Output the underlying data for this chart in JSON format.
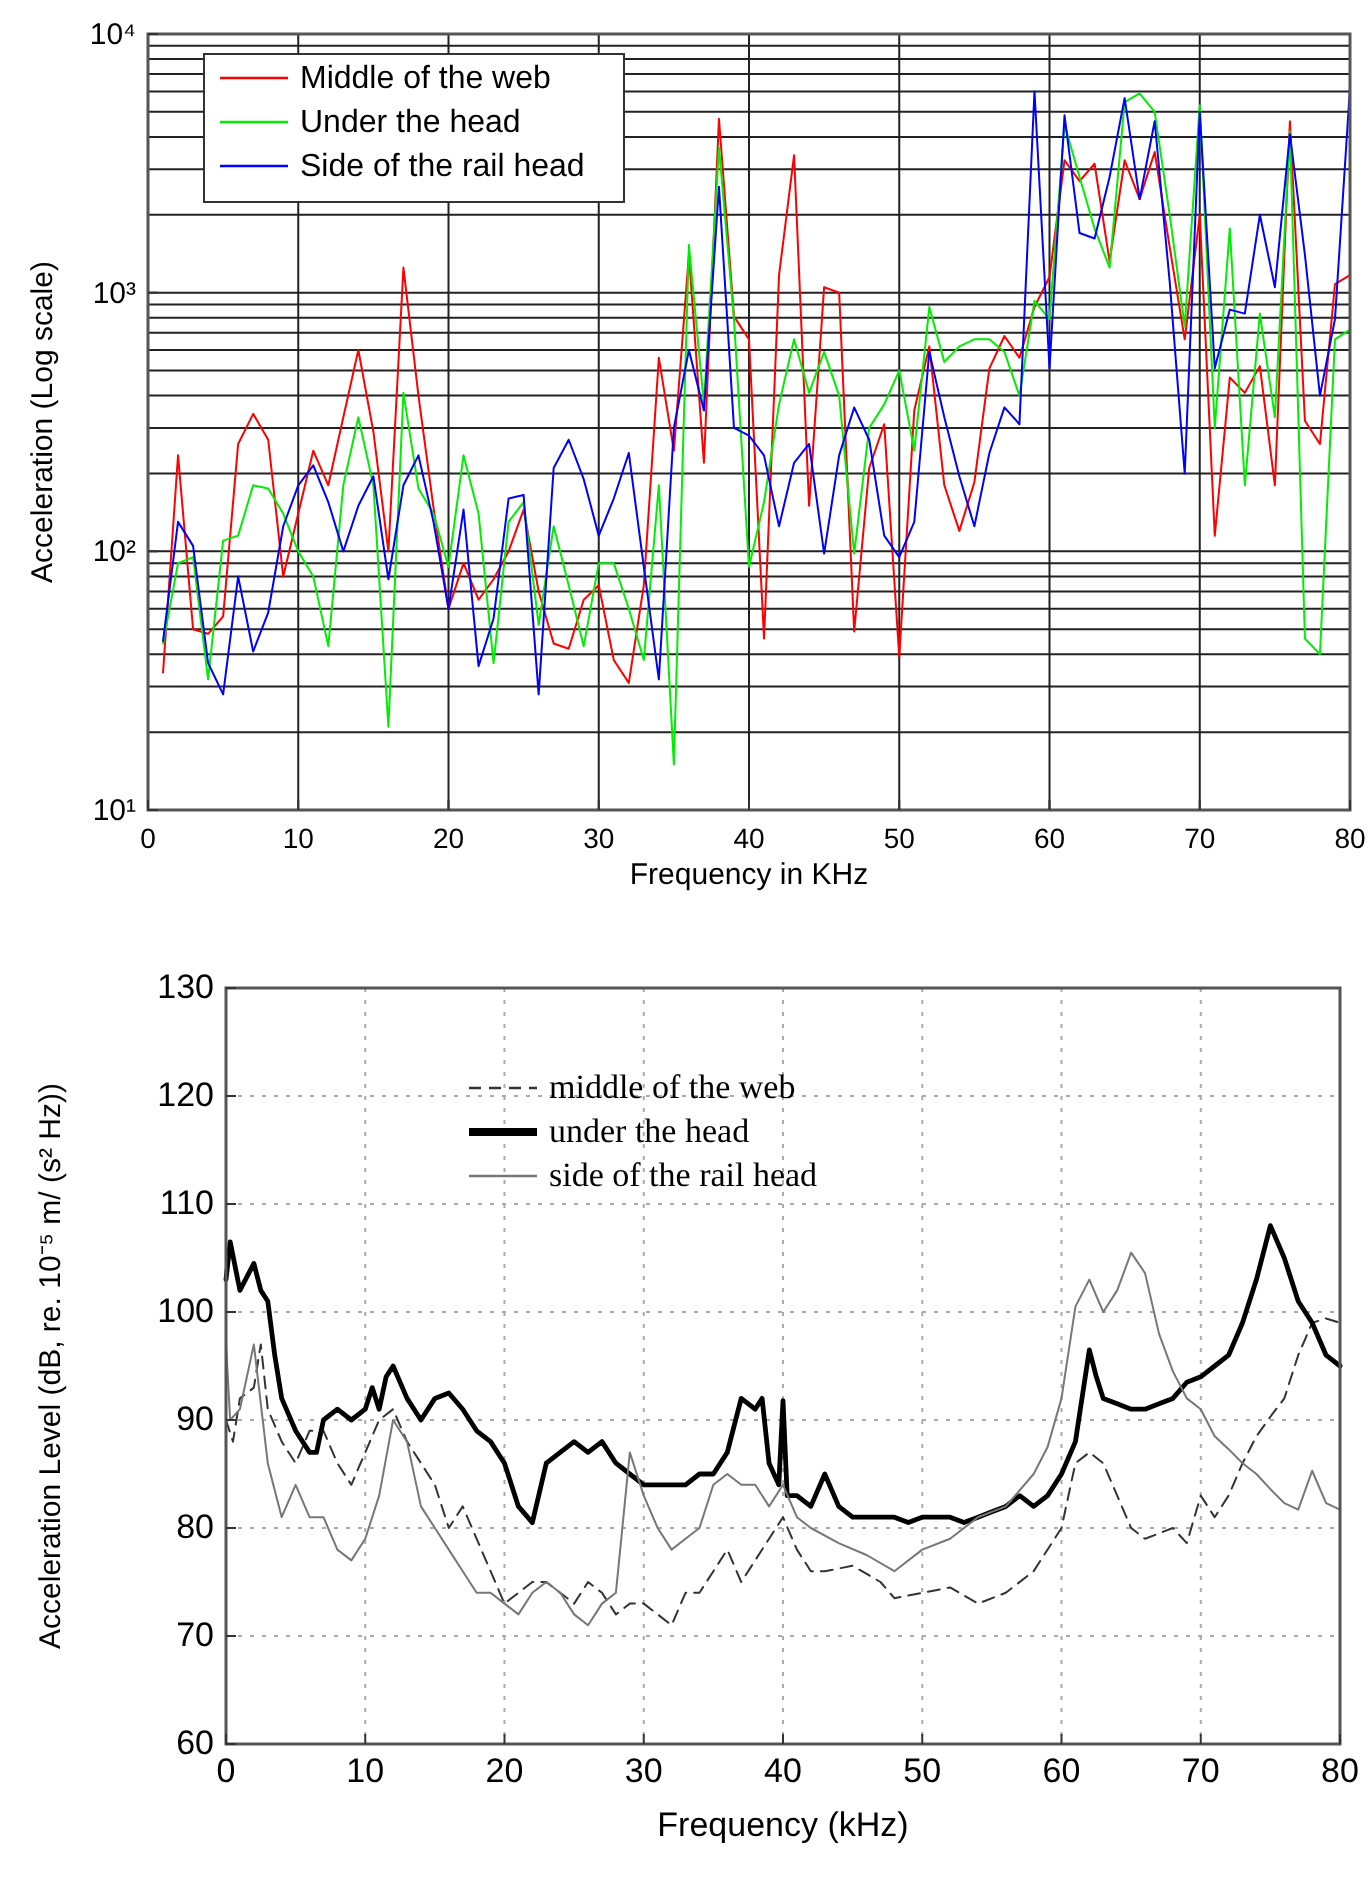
{
  "chart_data": [
    {
      "type": "line",
      "xlabel": "Frequency in KHz",
      "ylabel": "Acceleration (Log scale)",
      "log": "y",
      "grid": true,
      "legend": "top left",
      "marker": "none",
      "xlim": [
        0,
        80
      ],
      "xticks": [
        0,
        10,
        20,
        30,
        40,
        50,
        60,
        70,
        80
      ],
      "ylim": [
        10,
        10000
      ],
      "yticks": [
        {
          "value": 10,
          "label": "10¹"
        },
        {
          "value": 100,
          "label": "10²"
        },
        {
          "value": 1000,
          "label": "10³"
        },
        {
          "value": 10000,
          "label": "10⁴"
        }
      ],
      "x": [
        1,
        2,
        3,
        4,
        5,
        6,
        7,
        8,
        9,
        10,
        11,
        12,
        13,
        14,
        15,
        16,
        17,
        18,
        19,
        20,
        21,
        22,
        23,
        24,
        25,
        26,
        27,
        28,
        29,
        30,
        31,
        32,
        33,
        34,
        35,
        36,
        37,
        38,
        39,
        40,
        41,
        42,
        43,
        44,
        45,
        46,
        47,
        48,
        49,
        50,
        51,
        52,
        53,
        54,
        55,
        56,
        57,
        58,
        59,
        60,
        61,
        62,
        63,
        64,
        65,
        66,
        67,
        68,
        69,
        70,
        71,
        72,
        73,
        74,
        75,
        76,
        77,
        78,
        79,
        80
      ],
      "series": [
        {
          "name": "Middle of the web",
          "color": "#ff0000",
          "values": [
            34,
            235,
            50,
            48,
            56,
            260,
            340,
            270,
            80,
            140,
            245,
            180,
            330,
            600,
            290,
            100,
            1250,
            400,
            148,
            60,
            90,
            65,
            78,
            100,
            145,
            70,
            44,
            42,
            65,
            74,
            38,
            31,
            74,
            560,
            245,
            1400,
            220,
            4700,
            810,
            660,
            46,
            1170,
            3400,
            150,
            1050,
            1000,
            49,
            210,
            310,
            39,
            350,
            620,
            180,
            120,
            185,
            510,
            680,
            560,
            880,
            1150,
            3250,
            2700,
            3150,
            1320,
            3250,
            2300,
            3500,
            1500,
            660,
            2000,
            115,
            470,
            410,
            520,
            180,
            4600,
            320,
            260,
            1080,
            1170
          ]
        },
        {
          "name": "Under the head",
          "color": "#00ee00",
          "values": [
            44,
            90,
            95,
            32,
            110,
            115,
            180,
            175,
            140,
            100,
            80,
            43,
            180,
            330,
            180,
            21,
            410,
            175,
            140,
            87,
            235,
            140,
            37,
            130,
            155,
            52,
            125,
            74,
            43,
            90,
            90,
            60,
            38,
            180,
            15,
            1530,
            370,
            3650,
            790,
            87,
            155,
            370,
            660,
            410,
            590,
            400,
            98,
            300,
            370,
            500,
            245,
            880,
            540,
            620,
            660,
            660,
            590,
            400,
            930,
            790,
            4460,
            2800,
            1770,
            1250,
            5450,
            5900,
            5000,
            2000,
            740,
            5300,
            300,
            1770,
            180,
            830,
            330,
            4200,
            46,
            40,
            660,
            720
          ]
        },
        {
          "name": "Side of the rail head",
          "color": "#0000ff",
          "values": [
            45,
            130,
            105,
            37,
            28,
            80,
            41,
            58,
            125,
            180,
            215,
            155,
            100,
            150,
            195,
            78,
            180,
            235,
            130,
            60,
            145,
            36,
            55,
            160,
            165,
            28,
            210,
            270,
            190,
            115,
            160,
            240,
            87,
            32,
            300,
            600,
            350,
            2570,
            300,
            280,
            235,
            125,
            220,
            260,
            98,
            235,
            360,
            270,
            115,
            95,
            130,
            590,
            330,
            195,
            125,
            240,
            360,
            310,
            6000,
            510,
            4850,
            1700,
            1620,
            2800,
            5650,
            2300,
            4600,
            1100,
            200,
            5000,
            510,
            860,
            830,
            2000,
            1050,
            4100,
            1400,
            400,
            790,
            6200
          ]
        }
      ]
    },
    {
      "type": "line",
      "xlabel": "Frequency (kHz)",
      "ylabel": "Acceleration Level (dB, re. 10⁻⁵ m/ (s² Hz))",
      "grid": true,
      "legend": "top",
      "marker": "none",
      "xlim": [
        0,
        80
      ],
      "xticks": [
        0,
        10,
        20,
        30,
        40,
        50,
        60,
        70,
        80
      ],
      "ylim": [
        60,
        130
      ],
      "yticks": [
        60,
        70,
        80,
        90,
        100,
        110,
        120,
        130
      ],
      "series": [
        {
          "name": "middle of the web",
          "color": "#333333",
          "line_style": "dashed",
          "x": [
            0,
            0.5,
            1,
            2,
            2.5,
            3,
            4,
            5,
            6,
            7,
            8,
            9,
            10,
            11,
            12,
            13,
            14,
            15,
            16,
            17,
            18,
            19,
            20,
            21,
            22,
            23,
            24,
            25,
            26,
            27,
            28,
            29,
            30,
            31,
            32,
            33,
            34,
            35,
            36,
            37,
            38,
            39,
            40,
            41,
            42,
            43,
            45,
            47,
            48,
            50,
            52,
            54,
            56,
            58,
            59.5,
            60,
            61,
            62,
            63,
            64,
            65,
            66,
            67,
            68,
            69,
            70,
            71,
            72,
            73,
            74,
            75,
            76,
            77,
            78,
            79,
            80
          ],
          "values": [
            90,
            88,
            92,
            93,
            97,
            91,
            88,
            86,
            89,
            89,
            86,
            84,
            87,
            90,
            91,
            88,
            86,
            84,
            80,
            82,
            79,
            76,
            73,
            74,
            75,
            75,
            74,
            73,
            75,
            74,
            72,
            73,
            73,
            72,
            71,
            74,
            74,
            76,
            78,
            75,
            77,
            79,
            81,
            78,
            76,
            76,
            76.5,
            75,
            73.5,
            74,
            74.5,
            73,
            74,
            76,
            79,
            80,
            86,
            87,
            86,
            83,
            80,
            79,
            79.5,
            80,
            78.6,
            83,
            81,
            83,
            86,
            88.5,
            90.3,
            92,
            96,
            99,
            99.4,
            99
          ]
        },
        {
          "name": "under the head",
          "color": "#000000",
          "line_style": "solid",
          "x": [
            0,
            0.3,
            1,
            2,
            2.5,
            3,
            3.5,
            4,
            5,
            6,
            6.5,
            7,
            8,
            9,
            10,
            10.5,
            11,
            11.5,
            12,
            13,
            14,
            15,
            16,
            17,
            18,
            19,
            20,
            21,
            22,
            23,
            24,
            25,
            26,
            27,
            28,
            29,
            30,
            31,
            32,
            33,
            34,
            35,
            36,
            37,
            38,
            38.5,
            39,
            39.7,
            40,
            40.3,
            41,
            42,
            43,
            44,
            45,
            46,
            47,
            48,
            49,
            50,
            51,
            52,
            53,
            54,
            55,
            56,
            57,
            58,
            59,
            60,
            61,
            62,
            62.5,
            63,
            64,
            65,
            66,
            67,
            68,
            69,
            70,
            71,
            72,
            73,
            74,
            75,
            76,
            77,
            78,
            79,
            80
          ],
          "values": [
            103,
            106.5,
            102,
            104.5,
            102,
            101,
            96,
            92,
            89,
            87,
            87,
            90,
            91,
            90,
            91,
            93,
            91,
            94,
            95,
            92,
            90,
            92,
            92.5,
            91,
            89,
            88,
            86,
            82,
            80.5,
            86,
            87,
            88,
            87,
            88,
            86,
            85,
            84,
            84,
            84,
            84,
            85,
            85,
            87,
            92,
            91,
            92,
            86,
            84,
            91.8,
            83,
            83,
            82,
            85,
            82,
            81,
            81,
            81,
            81,
            80.5,
            81,
            81,
            81,
            80.5,
            81,
            81.5,
            82,
            83,
            82,
            83,
            85,
            88,
            96.5,
            94,
            92,
            91.5,
            91,
            91,
            91.5,
            92,
            93.5,
            94,
            95,
            96,
            99,
            103,
            108,
            105,
            101,
            99,
            96,
            95
          ]
        },
        {
          "name": "side of the rail head",
          "color": "#777777",
          "line_style": "solid",
          "x": [
            0,
            0.3,
            1,
            2,
            3,
            4,
            5,
            6,
            7,
            8,
            9,
            10,
            11,
            12,
            13,
            14,
            15,
            16,
            17,
            18,
            19,
            20,
            21,
            22,
            23,
            24,
            25,
            26,
            27,
            28,
            29,
            30,
            31,
            32,
            33,
            34,
            35,
            36,
            37,
            38,
            39,
            40,
            41,
            42,
            44,
            46,
            48,
            50,
            52,
            54,
            56,
            58,
            59,
            60,
            61,
            62,
            63,
            64,
            65,
            66,
            67,
            68,
            69,
            70,
            71,
            72,
            73,
            74,
            75,
            76,
            77,
            78,
            79,
            80
          ],
          "values": [
            97,
            90,
            91,
            97,
            86,
            81,
            84,
            81,
            81,
            78,
            77,
            79,
            83,
            90,
            88,
            82,
            80,
            78,
            76,
            74,
            74,
            73,
            72,
            74,
            75,
            74,
            72,
            71,
            73,
            74,
            87,
            83,
            80,
            78,
            79,
            80,
            84,
            85,
            84,
            84,
            82,
            84,
            81,
            80,
            78.6,
            77.5,
            76,
            78,
            79,
            81,
            82,
            85,
            87.5,
            92,
            100.5,
            103,
            100,
            102,
            105.5,
            103.6,
            98,
            94.5,
            92,
            91,
            88.5,
            87.3,
            86,
            85,
            83.6,
            82.3,
            81.7,
            85.3,
            82.3,
            81.7
          ]
        }
      ]
    }
  ]
}
